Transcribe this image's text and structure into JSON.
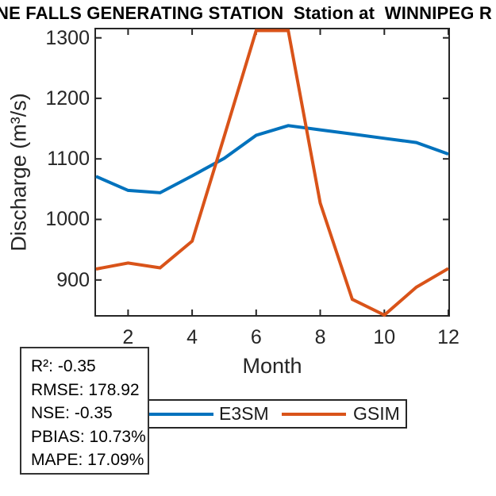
{
  "chart_data": {
    "type": "line",
    "title": "NE FALLS GENERATING STATION  Station at  WINNIPEG R",
    "x": [
      1,
      2,
      3,
      4,
      5,
      6,
      7,
      8,
      9,
      10,
      11,
      12
    ],
    "series": [
      {
        "name": "E3SM",
        "color": "#0072BD",
        "values": [
          1071,
          1048,
          1044,
          1072,
          1101,
          1139,
          1155,
          1148,
          1141,
          1134,
          1127,
          1108
        ]
      },
      {
        "name": "GSIM",
        "color": "#D95319",
        "values": [
          918,
          928,
          920,
          964,
          1137,
          1312,
          1312,
          1027,
          868,
          842,
          888,
          919
        ]
      }
    ],
    "xlabel": "Month",
    "ylabel": "Discharge (m³/s)",
    "xlim": [
      1,
      12
    ],
    "ylim": [
      842,
      1314
    ],
    "xticks": [
      2,
      4,
      6,
      8,
      10,
      12
    ],
    "yticks": [
      900,
      1000,
      1100,
      1200,
      1300
    ],
    "grid": false,
    "legend_position": "below-axis",
    "legend_entries": [
      "E3SM",
      "GSIM"
    ]
  },
  "legend": {
    "items": [
      {
        "label": "E3SM",
        "color": "#0072BD"
      },
      {
        "label": "GSIM",
        "color": "#D95319"
      }
    ]
  },
  "stats_box": {
    "lines": [
      "R²: -0.35",
      "RMSE: 178.92",
      "NSE: -0.35",
      "PBIAS: 10.73%",
      "MAPE: 17.09%"
    ]
  },
  "colors": {
    "e3sm_blue": "#0072BD",
    "gsim_orange": "#D95319",
    "axis": "#262626",
    "background": "#ffffff"
  }
}
